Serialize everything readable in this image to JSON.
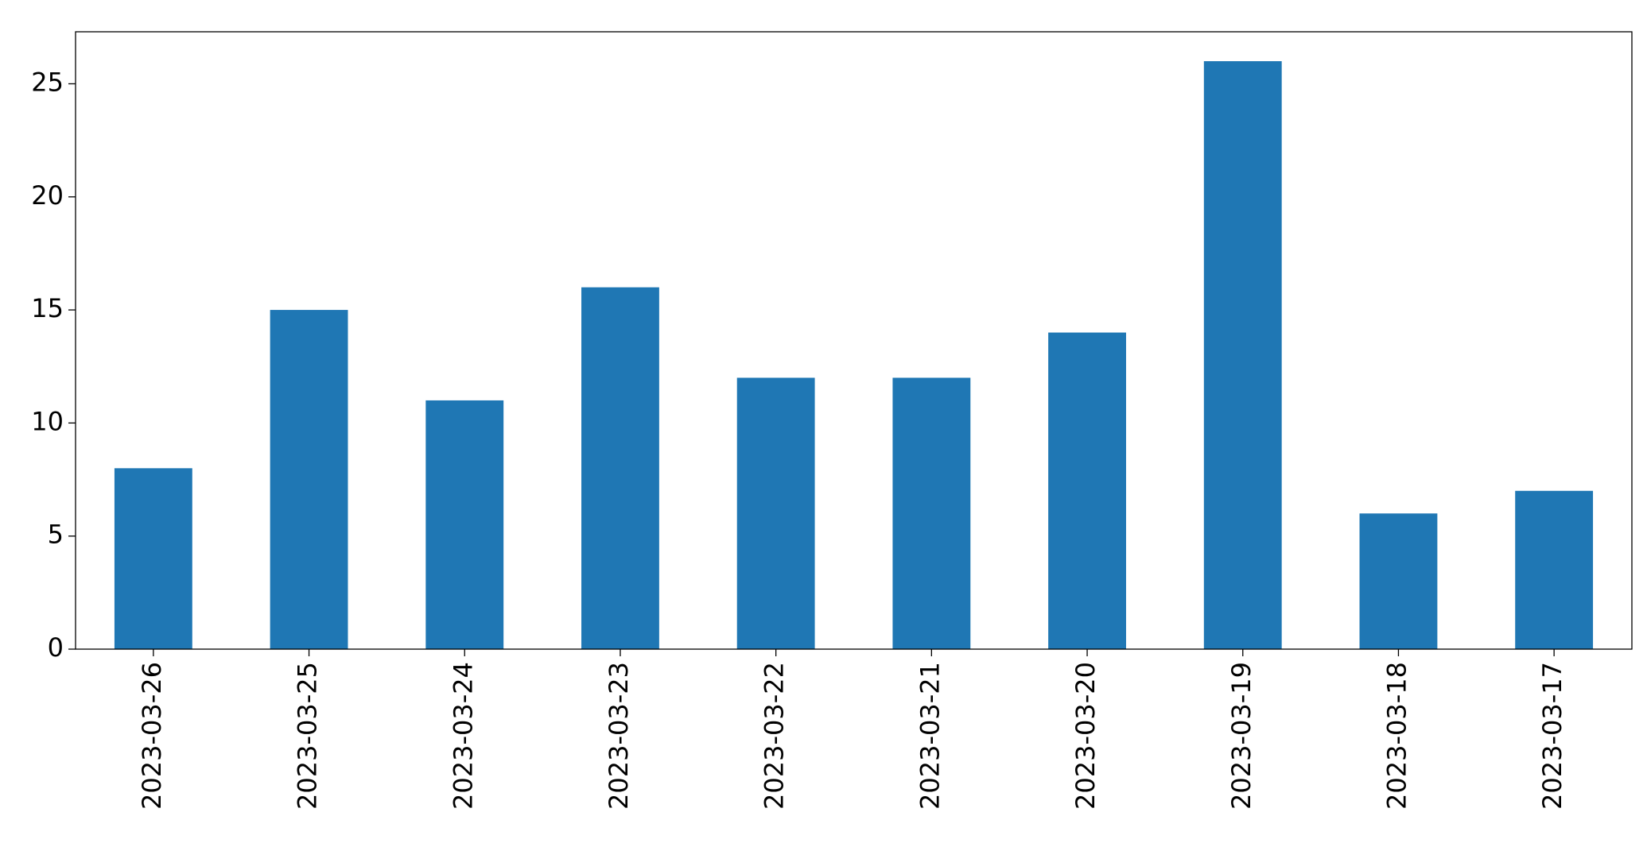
{
  "chart_data": {
    "type": "bar",
    "categories": [
      "2023-03-26",
      "2023-03-25",
      "2023-03-24",
      "2023-03-23",
      "2023-03-22",
      "2023-03-21",
      "2023-03-20",
      "2023-03-19",
      "2023-03-18",
      "2023-03-17"
    ],
    "values": [
      8,
      15,
      11,
      16,
      12,
      12,
      14,
      26,
      6,
      7
    ],
    "color": "#1f77b4",
    "ylim": [
      0,
      27.3
    ],
    "yticks": [
      0,
      5,
      10,
      15,
      20,
      25
    ],
    "grid": false
  }
}
